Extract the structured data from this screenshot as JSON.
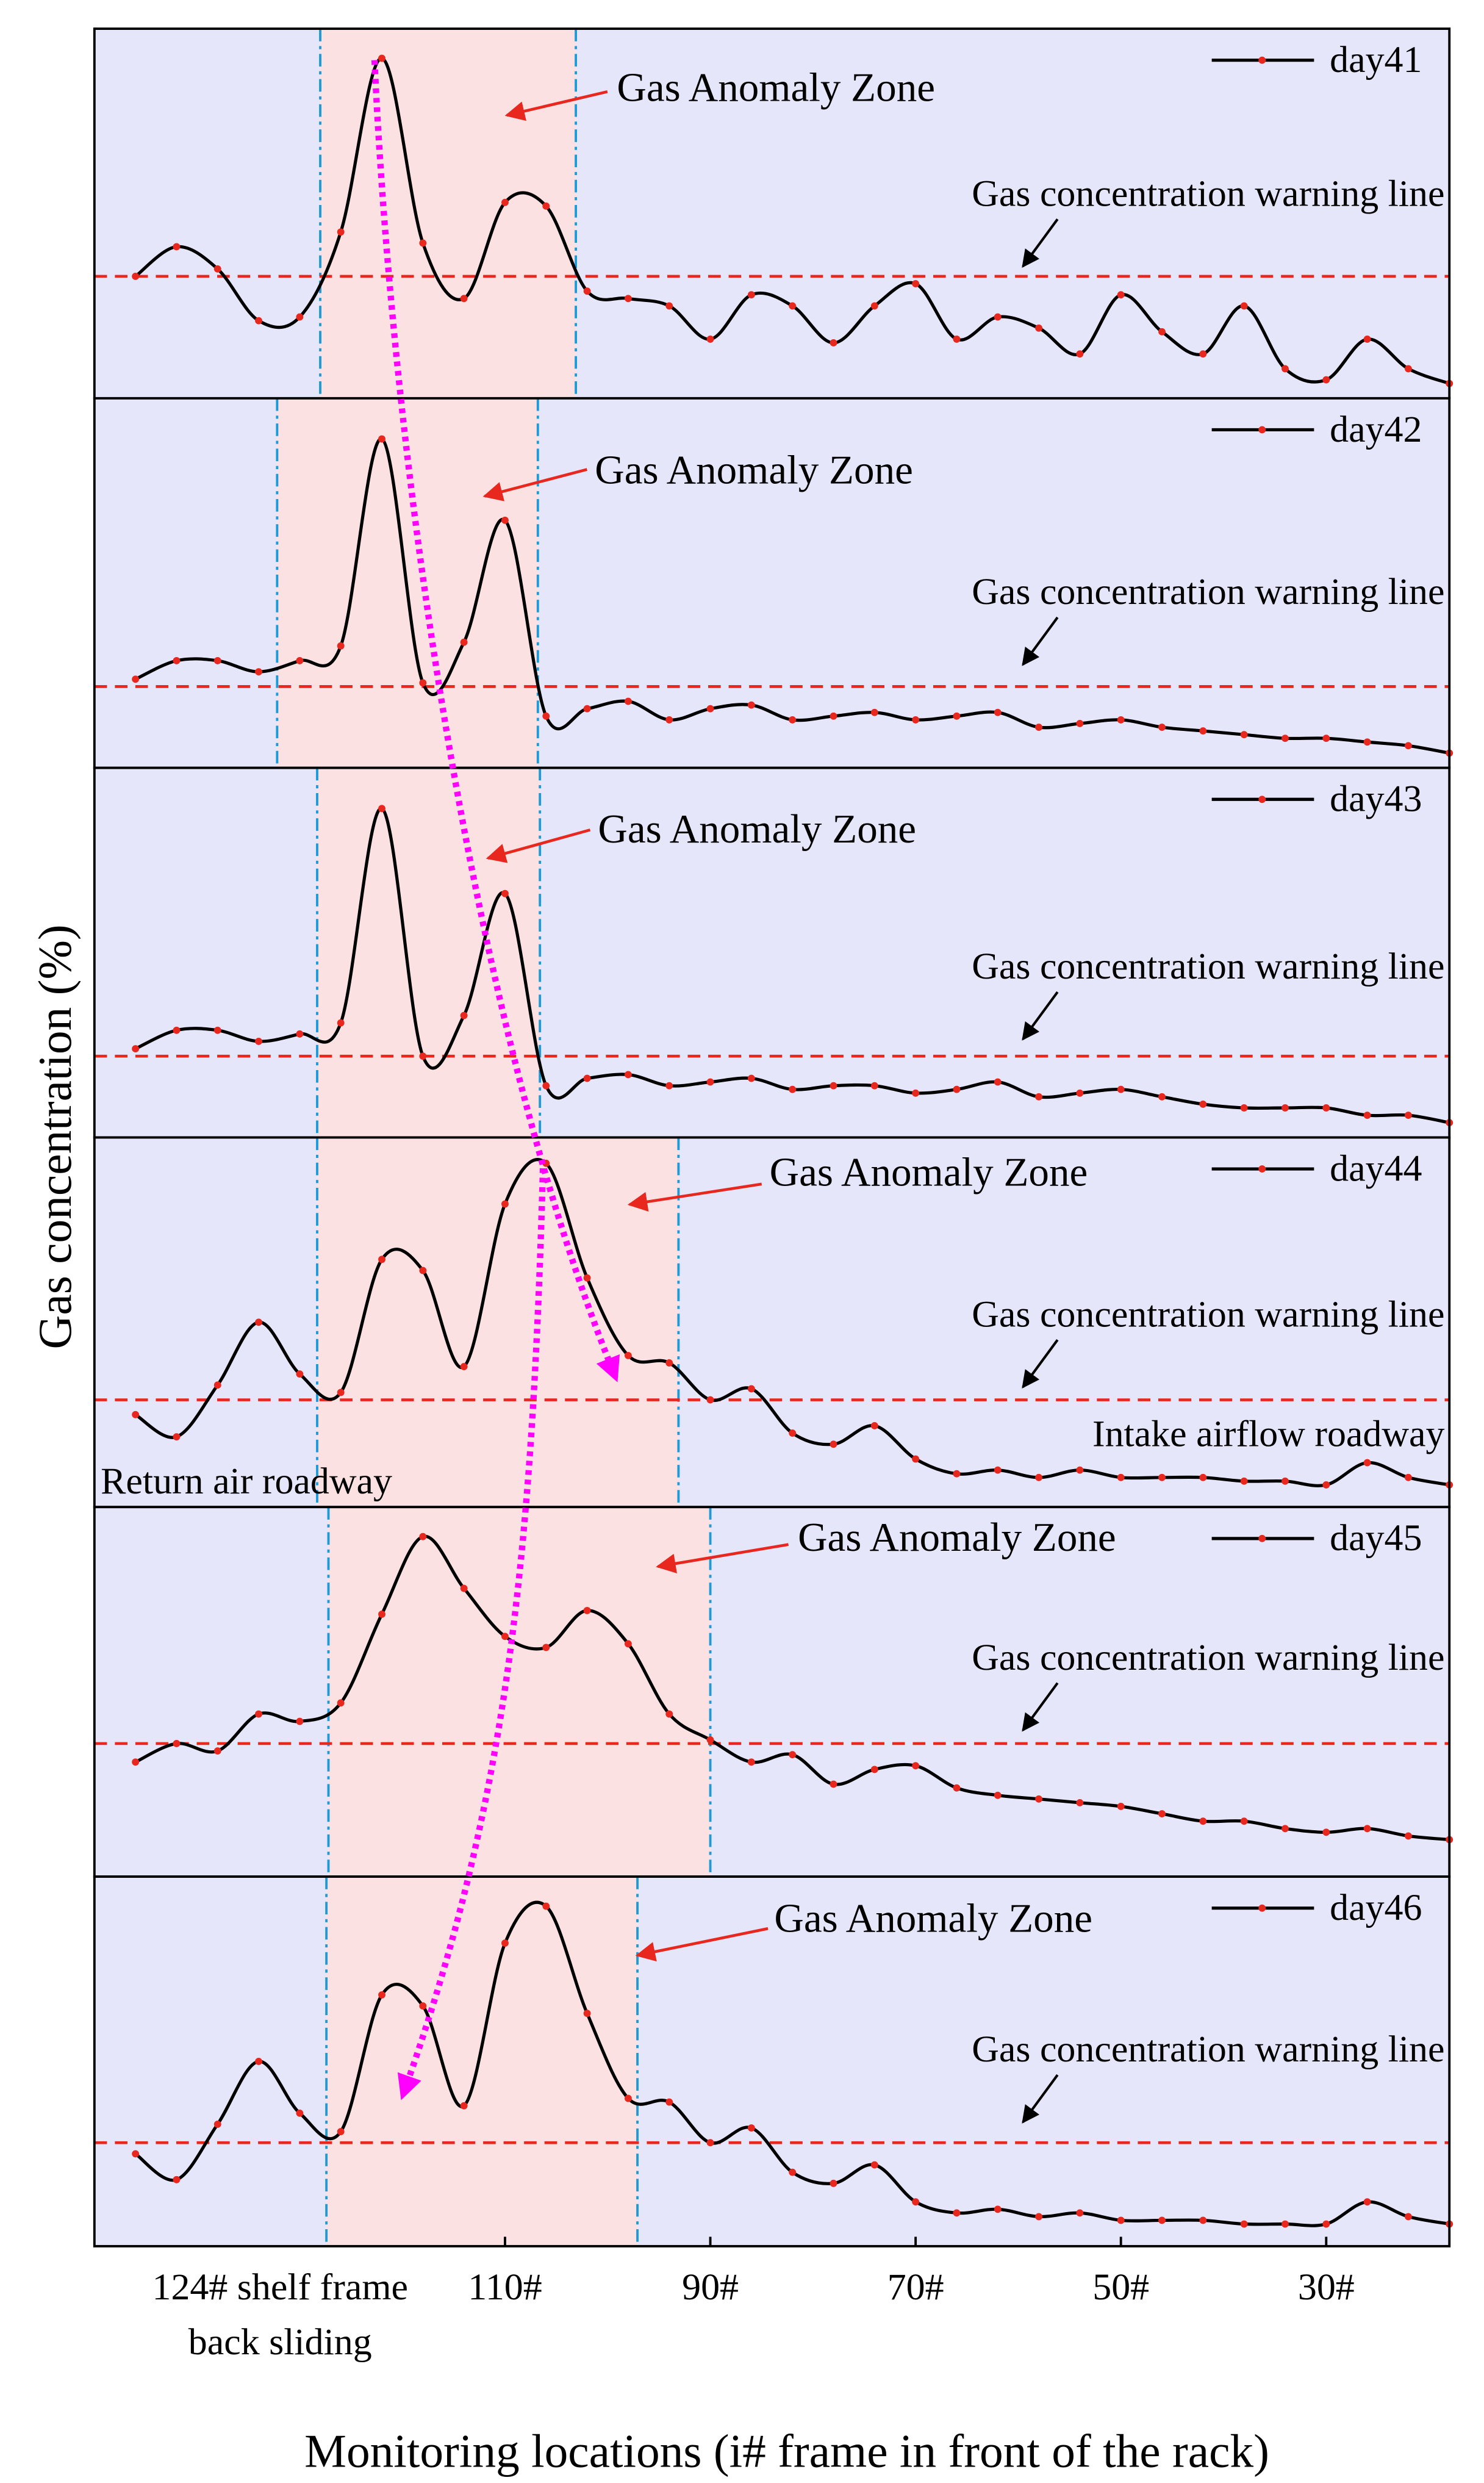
{
  "chart_data": {
    "type": "line",
    "xlabel": "Monitoring locations (i# frame in front of the rack)",
    "ylabel": "Gas concentration (%)",
    "x": [
      146,
      142,
      138,
      134,
      130,
      126,
      122,
      118,
      114,
      110,
      106,
      102,
      98,
      94,
      90,
      86,
      82,
      78,
      74,
      70,
      66,
      62,
      58,
      54,
      50,
      46,
      42,
      38,
      34,
      30,
      26,
      22,
      18
    ],
    "xlim": [
      150,
      18
    ],
    "xticks": [
      {
        "value": 110,
        "label": "110#"
      },
      {
        "value": 90,
        "label": "90#"
      },
      {
        "value": 70,
        "label": "70#"
      },
      {
        "value": 50,
        "label": "50#"
      },
      {
        "value": 30,
        "label": "30#"
      }
    ],
    "xnote": [
      "124# shelf frame",
      "back sliding"
    ],
    "ylim": [
      0,
      100
    ],
    "line_color": "#000000",
    "marker_color": "#e8281e",
    "background_color": "#e6e6fa",
    "zone_color": "#fbe1e1",
    "series": [
      {
        "name": "day41",
        "color": "#000000",
        "values": [
          33,
          41,
          35,
          21,
          22,
          45,
          92,
          42,
          27,
          53,
          52,
          29,
          27,
          25,
          16,
          28,
          25,
          15,
          25,
          31,
          16,
          22,
          19,
          12,
          28,
          18,
          12,
          25,
          8,
          5,
          16,
          8,
          4
        ]
      },
      {
        "name": "day42",
        "color": "#000000",
        "values": [
          24,
          29,
          29,
          26,
          29,
          33,
          89,
          23,
          34,
          67,
          14,
          16,
          18,
          13,
          16,
          17,
          13,
          14,
          15,
          13,
          14,
          15,
          11,
          12,
          13,
          11,
          10,
          9,
          8,
          8,
          7,
          6,
          4
        ]
      },
      {
        "name": "day43",
        "color": "#000000",
        "values": [
          24,
          29,
          29,
          26,
          28,
          31,
          89,
          22,
          33,
          66,
          14,
          16,
          17,
          14,
          15,
          16,
          13,
          14,
          14,
          12,
          13,
          15,
          11,
          12,
          13,
          11,
          9,
          8,
          8,
          8,
          6,
          6,
          4
        ]
      },
      {
        "name": "day44",
        "color": "#000000",
        "values": [
          25,
          19,
          33,
          50,
          36,
          31,
          67,
          64,
          38,
          82,
          93,
          62,
          41,
          39,
          29,
          32,
          20,
          17,
          22,
          13,
          9,
          10,
          8,
          10,
          8,
          8,
          8,
          7,
          7,
          6,
          12,
          8,
          6
        ]
      },
      {
        "name": "day45",
        "color": "#000000",
        "values": [
          31,
          36,
          34,
          44,
          42,
          47,
          71,
          92,
          78,
          65,
          62,
          72,
          63,
          44,
          37,
          31,
          33,
          25,
          29,
          30,
          24,
          22,
          21,
          20,
          19,
          17,
          15,
          15,
          13,
          12,
          13,
          11,
          10
        ]
      },
      {
        "name": "day46",
        "color": "#000000",
        "values": [
          25,
          18,
          33,
          50,
          36,
          31,
          68,
          65,
          38,
          82,
          92,
          63,
          40,
          39,
          28,
          32,
          20,
          17,
          22,
          12,
          9,
          10,
          8,
          9,
          7,
          7,
          7,
          6,
          6,
          6,
          12,
          8,
          6
        ]
      }
    ],
    "panels": [
      {
        "zone": [
          128,
          103.1
        ],
        "zone_label": "Gas Anomaly Zone",
        "warning": 33,
        "warning_label": "Gas concentration warning line"
      },
      {
        "zone": [
          132.2,
          106.8
        ],
        "zone_label": "Gas Anomaly Zone",
        "warning": 22,
        "warning_label": "Gas concentration warning line"
      },
      {
        "zone": [
          128.3,
          106.6
        ],
        "zone_label": "Gas Anomaly Zone",
        "warning": 22,
        "warning_label": "Gas concentration warning line"
      },
      {
        "zone": [
          128.3,
          93.1
        ],
        "zone_label": "Gas Anomaly Zone",
        "warning": 29,
        "warning_label": "Gas concentration warning line"
      },
      {
        "zone": [
          127.2,
          90
        ],
        "zone_label": "Gas Anomaly Zone",
        "warning": 36,
        "warning_label": "Gas concentration warning line"
      },
      {
        "zone": [
          127.4,
          97.1
        ],
        "zone_label": "Gas Anomaly Zone",
        "warning": 28,
        "warning_label": "Gas concentration warning line"
      }
    ],
    "annotations": [
      "Intake airflow roadway",
      "Return air roadway"
    ]
  }
}
